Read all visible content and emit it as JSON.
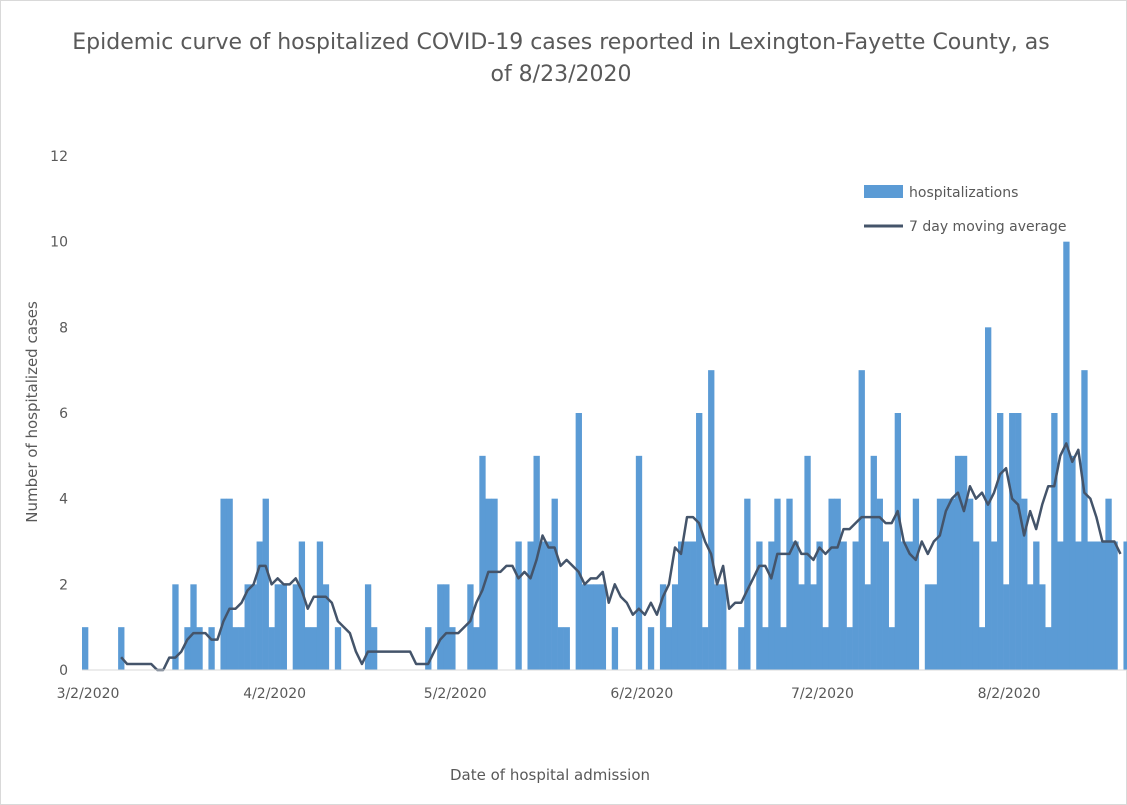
{
  "chart_data": {
    "type": "bar",
    "title": "Epidemic curve of hospitalized COVID-19 cases reported in Lexington-Fayette County, as of 8/23/2020",
    "xlabel": "Date of hospital admission",
    "ylabel": "Number of hospitalized cases",
    "x_start": "2020-03-01",
    "x_end": "2020-08-23",
    "ylim": [
      0,
      12
    ],
    "y_ticks": [
      "0",
      "2",
      "4",
      "6",
      "8",
      "10",
      "12"
    ],
    "x_ticks": [
      "3/2/2020",
      "4/2/2020",
      "5/2/2020",
      "6/2/2020",
      "7/2/2020",
      "8/2/2020"
    ],
    "x_tick_dates": [
      "2020-03-02",
      "2020-04-02",
      "2020-05-02",
      "2020-06-02",
      "2020-07-02",
      "2020-08-02"
    ],
    "grid": false,
    "legend_position": "top-right",
    "series": [
      {
        "name": "hospitalizations",
        "kind": "bar",
        "color": "#5b9bd5",
        "values": [
          1,
          0,
          0,
          0,
          0,
          0,
          1,
          0,
          0,
          0,
          0,
          0,
          0,
          0,
          0,
          2,
          0,
          1,
          2,
          1,
          0,
          1,
          0,
          4,
          4,
          1,
          1,
          2,
          2,
          3,
          4,
          1,
          2,
          2,
          0,
          2,
          3,
          1,
          1,
          3,
          2,
          0,
          1,
          0,
          0,
          0,
          0,
          2,
          1,
          0,
          0,
          0,
          0,
          0,
          0,
          0,
          0,
          1,
          0,
          2,
          2,
          1,
          0,
          0,
          2,
          1,
          5,
          4,
          4,
          0,
          0,
          0,
          3,
          0,
          3,
          5,
          3,
          3,
          4,
          1,
          1,
          0,
          6,
          2,
          2,
          2,
          2,
          0,
          1,
          0,
          0,
          0,
          5,
          0,
          1,
          0,
          2,
          1,
          2,
          3,
          3,
          3,
          6,
          1,
          7,
          2,
          2,
          0,
          0,
          1,
          4,
          0,
          3,
          1,
          3,
          4,
          1,
          4,
          3,
          2,
          5,
          2,
          3,
          1,
          4,
          4,
          3,
          1,
          3,
          7,
          2,
          5,
          4,
          3,
          1,
          6,
          3,
          3,
          4,
          0,
          2,
          2,
          4,
          4,
          4,
          5,
          5,
          4,
          3,
          1,
          8,
          3,
          6,
          2,
          6,
          6,
          4,
          2,
          3,
          2,
          1,
          6,
          3,
          10,
          5,
          3,
          7,
          3,
          3,
          3,
          4,
          3,
          0,
          3,
          3,
          3
        ],
        "labels_present": false
      },
      {
        "name": "7 day moving average",
        "kind": "line",
        "color": "#44546a",
        "start_index": 6,
        "values": [
          0.3,
          0.14,
          0.14,
          0.14,
          0.14,
          0.14,
          0.0,
          0.0,
          0.29,
          0.29,
          0.43,
          0.71,
          0.86,
          0.86,
          0.86,
          0.71,
          0.71,
          1.14,
          1.43,
          1.43,
          1.57,
          1.86,
          2.0,
          2.43,
          2.43,
          2.0,
          2.14,
          2.0,
          2.0,
          2.14,
          1.86,
          1.43,
          1.71,
          1.71,
          1.71,
          1.57,
          1.14,
          1.0,
          0.86,
          0.43,
          0.14,
          0.43,
          0.43,
          0.43,
          0.43,
          0.43,
          0.43,
          0.43,
          0.43,
          0.14,
          0.14,
          0.14,
          0.43,
          0.71,
          0.86,
          0.86,
          0.86,
          1.0,
          1.14,
          1.57,
          1.86,
          2.29,
          2.29,
          2.29,
          2.43,
          2.43,
          2.14,
          2.29,
          2.14,
          2.57,
          3.14,
          2.86,
          2.86,
          2.43,
          2.57,
          2.43,
          2.29,
          2.0,
          2.14,
          2.14,
          2.29,
          1.57,
          2.0,
          1.71,
          1.57,
          1.29,
          1.43,
          1.29,
          1.57,
          1.29,
          1.71,
          2.0,
          2.86,
          2.71,
          3.57,
          3.57,
          3.43,
          3.0,
          2.71,
          2.0,
          2.43,
          1.43,
          1.57,
          1.57,
          1.86,
          2.14,
          2.43,
          2.43,
          2.14,
          2.71,
          2.71,
          2.71,
          3.0,
          2.71,
          2.71,
          2.57,
          2.86,
          2.71,
          2.86,
          2.86,
          3.29,
          3.29,
          3.43,
          3.57,
          3.57,
          3.57,
          3.57,
          3.43,
          3.43,
          3.71,
          3.0,
          2.71,
          2.57,
          3.0,
          2.71,
          3.0,
          3.14,
          3.71,
          4.0,
          4.14,
          3.71,
          4.29,
          4.0,
          4.14,
          3.86,
          4.14,
          4.57,
          4.71,
          4.0,
          3.86,
          3.14,
          3.71,
          3.29,
          3.86,
          4.29,
          4.29,
          5.0,
          5.29,
          4.86,
          5.14,
          4.14,
          4.0,
          3.57,
          3.0,
          3.0,
          3.0,
          2.71
        ]
      }
    ]
  }
}
